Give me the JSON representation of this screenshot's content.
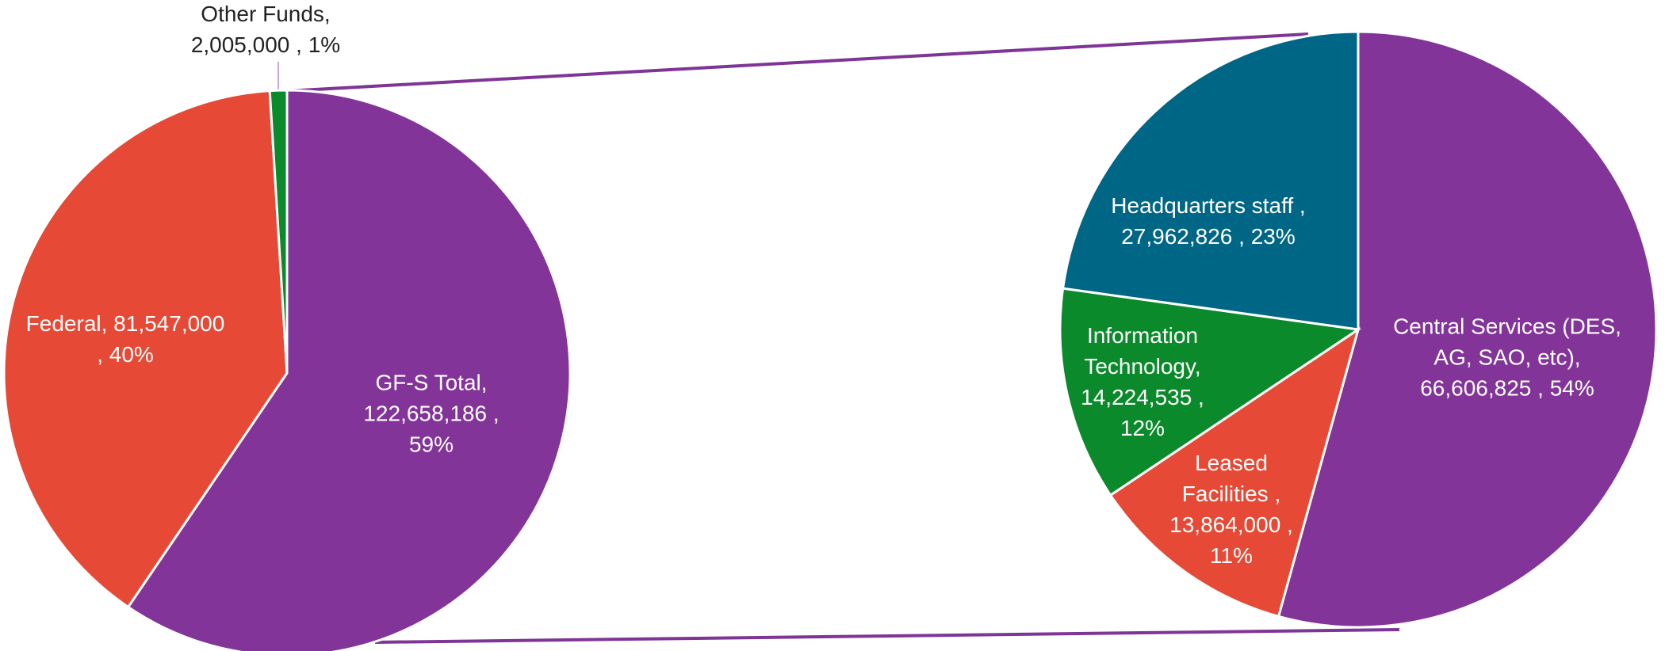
{
  "chart_data": [
    {
      "type": "pie",
      "categories": [
        "GF-S Total,",
        "Federal,",
        "Other Funds,"
      ],
      "values": [
        122658186,
        81547000,
        2005000
      ],
      "value_labels": [
        "122,658,186 ,",
        "81,547,000 ,",
        "2,005,000 ,"
      ],
      "percents": [
        59,
        40,
        1
      ],
      "percent_labels": [
        "59%",
        "40%",
        "1%"
      ],
      "colors": [
        "#833499",
        "#e64a36",
        "#0a8a2a"
      ]
    },
    {
      "type": "pie",
      "categories": [
        "Central Services (DES, AG, SAO, etc),",
        "Leased Facilities ,",
        "Information Technology,",
        "Headquarters staff ,"
      ],
      "values": [
        66606825,
        13864000,
        14224535,
        27962826
      ],
      "value_labels": [
        "66,606,825 ,",
        "13,864,000 ,",
        "14,224,535 ,",
        "27,962,826 ,"
      ],
      "percents": [
        54,
        11,
        12,
        23
      ],
      "percent_labels": [
        "54%",
        "11%",
        "12%",
        "23%"
      ],
      "colors": [
        "#833499",
        "#e64a36",
        "#0a8a2a",
        "#006685"
      ]
    }
  ]
}
